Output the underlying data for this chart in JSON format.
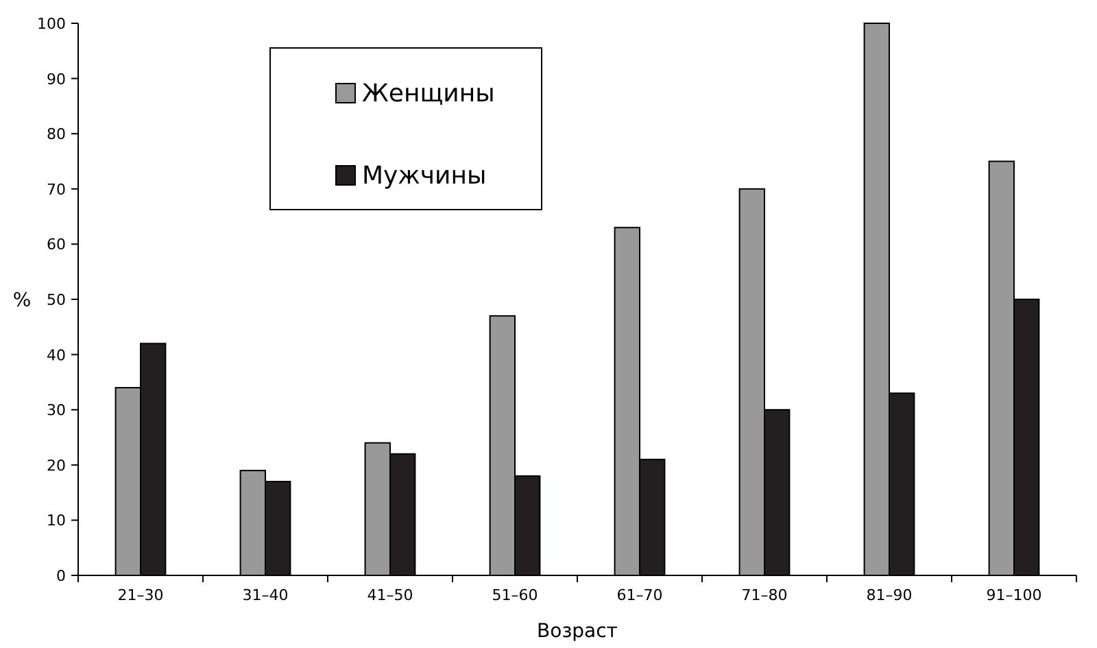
{
  "chart_data": {
    "type": "bar",
    "xlabel": "Возраст",
    "ylabel": "%",
    "categories": [
      "21–30",
      "31–40",
      "41–50",
      "51–60",
      "61–70",
      "71–80",
      "81–90",
      "91–100"
    ],
    "series": [
      {
        "name": "Женщины",
        "color": "#999999",
        "values": [
          34,
          19,
          24,
          47,
          63,
          70,
          100,
          75
        ]
      },
      {
        "name": "Мужчины",
        "color": "#231f20",
        "values": [
          42,
          17,
          22,
          18,
          21,
          30,
          33,
          50
        ]
      }
    ],
    "ylim": [
      0,
      100
    ],
    "yticks": [
      0,
      10,
      20,
      30,
      40,
      50,
      60,
      70,
      80,
      90,
      100
    ],
    "grid": false,
    "legend": "top left"
  }
}
